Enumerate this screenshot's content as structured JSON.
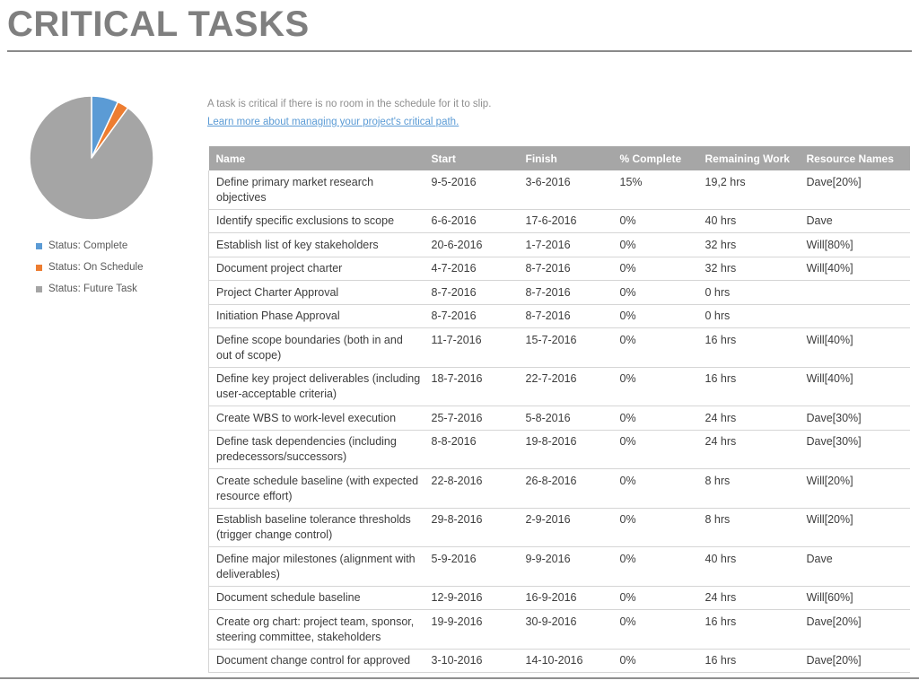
{
  "page": {
    "title": "CRITICAL TASKS"
  },
  "intro": {
    "description": "A task is critical if there is no room in the schedule for it to slip.",
    "link_text": "Learn more about managing your project's critical path."
  },
  "chart_data": {
    "type": "pie",
    "title": "",
    "labels": [
      "Status: Complete",
      "Status: On Schedule",
      "Status: Future Task"
    ],
    "values": [
      7,
      3,
      90
    ],
    "colors": [
      "#5b9bd5",
      "#ed7d31",
      "#a5a5a5"
    ],
    "start_angle_deg": 0,
    "slice_border_color": "#ffffff",
    "legend_position": "below-left"
  },
  "table": {
    "columns": [
      "Name",
      "Start",
      "Finish",
      "% Complete",
      "Remaining Work",
      "Resource Names"
    ],
    "rows": [
      [
        "Define primary market research objectives",
        "9-5-2016",
        "3-6-2016",
        "15%",
        "19,2 hrs",
        "Dave[20%]"
      ],
      [
        "Identify specific exclusions to scope",
        "6-6-2016",
        "17-6-2016",
        "0%",
        "40 hrs",
        "Dave"
      ],
      [
        "Establish list of key stakeholders",
        "20-6-2016",
        "1-7-2016",
        "0%",
        "32 hrs",
        "Will[80%]"
      ],
      [
        "Document project charter",
        "4-7-2016",
        "8-7-2016",
        "0%",
        "32 hrs",
        "Will[40%]"
      ],
      [
        "Project Charter Approval",
        "8-7-2016",
        "8-7-2016",
        "0%",
        "0 hrs",
        ""
      ],
      [
        "Initiation Phase Approval",
        "8-7-2016",
        "8-7-2016",
        "0%",
        "0 hrs",
        ""
      ],
      [
        "Define scope boundaries (both in and out of scope)",
        "11-7-2016",
        "15-7-2016",
        "0%",
        "16 hrs",
        "Will[40%]"
      ],
      [
        "Define key project deliverables (including user-acceptable criteria)",
        "18-7-2016",
        "22-7-2016",
        "0%",
        "16 hrs",
        "Will[40%]"
      ],
      [
        "Create WBS to work-level execution",
        "25-7-2016",
        "5-8-2016",
        "0%",
        "24 hrs",
        "Dave[30%]"
      ],
      [
        "Define task dependencies (including predecessors/successors)",
        "8-8-2016",
        "19-8-2016",
        "0%",
        "24 hrs",
        "Dave[30%]"
      ],
      [
        "Create schedule baseline (with expected resource effort)",
        "22-8-2016",
        "26-8-2016",
        "0%",
        "8 hrs",
        "Will[20%]"
      ],
      [
        "Establish baseline tolerance thresholds (trigger change control)",
        "29-8-2016",
        "2-9-2016",
        "0%",
        "8 hrs",
        "Will[20%]"
      ],
      [
        "Define major milestones (alignment with deliverables)",
        "5-9-2016",
        "9-9-2016",
        "0%",
        "40 hrs",
        "Dave"
      ],
      [
        "Document schedule baseline",
        "12-9-2016",
        "16-9-2016",
        "0%",
        "24 hrs",
        "Will[60%]"
      ],
      [
        "Create org chart: project team, sponsor, steering committee, stakeholders",
        "19-9-2016",
        "30-9-2016",
        "0%",
        "16 hrs",
        "Dave[20%]"
      ],
      [
        "Document change control for approved",
        "3-10-2016",
        "14-10-2016",
        "0%",
        "16 hrs",
        "Dave[20%]"
      ]
    ]
  }
}
